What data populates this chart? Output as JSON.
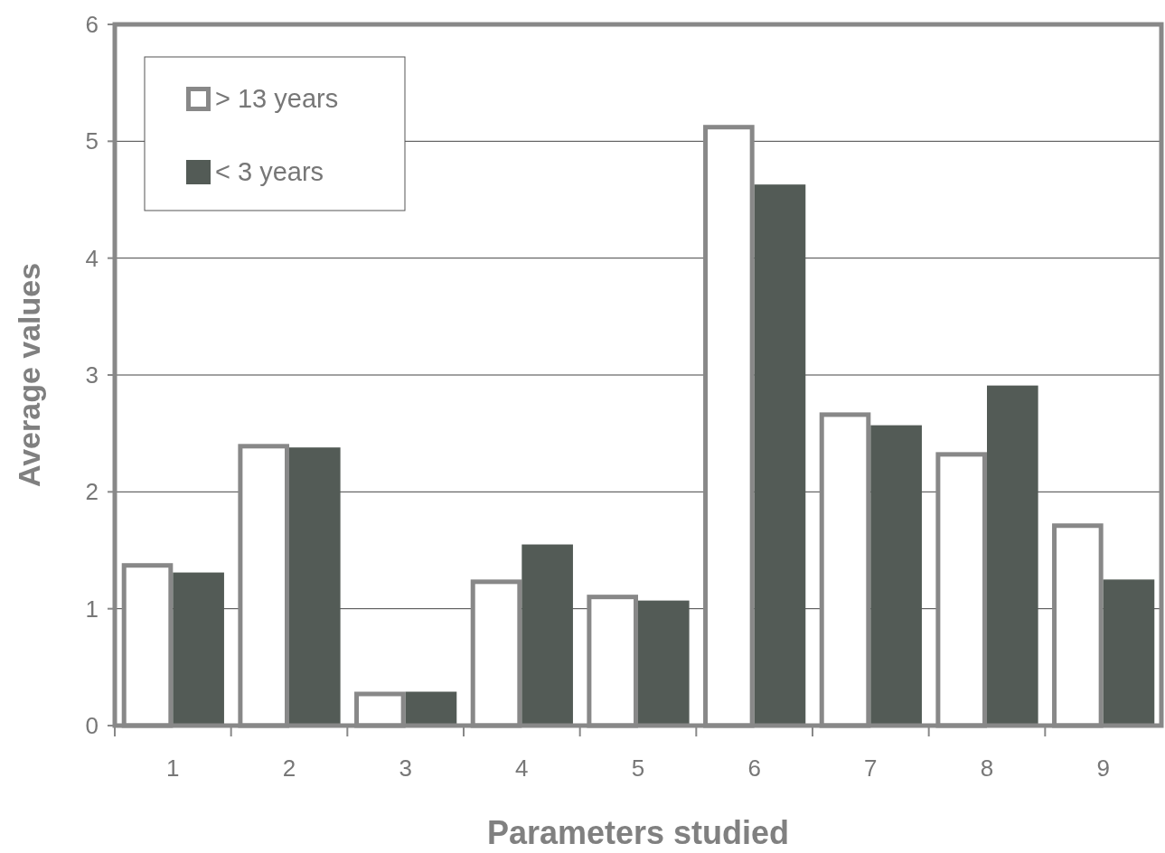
{
  "chart_data": {
    "type": "bar",
    "xlabel": "Parameters studied",
    "ylabel": "Average values",
    "categories": [
      "1",
      "2",
      "3",
      "4",
      "5",
      "6",
      "7",
      "8",
      "9"
    ],
    "series": [
      {
        "name": "> 13 years",
        "color": "#ffffff",
        "values": [
          1.39,
          2.41,
          0.29,
          1.25,
          1.12,
          5.14,
          2.68,
          2.34,
          1.73
        ]
      },
      {
        "name": "< 3 years",
        "color": "#535b56",
        "values": [
          1.31,
          2.38,
          0.29,
          1.55,
          1.07,
          4.63,
          2.57,
          2.91,
          1.25
        ]
      }
    ],
    "ylim": [
      0,
      6
    ],
    "yticks": [
      0,
      1,
      2,
      3,
      4,
      5,
      6
    ],
    "grid": "y",
    "legend": "top left"
  }
}
